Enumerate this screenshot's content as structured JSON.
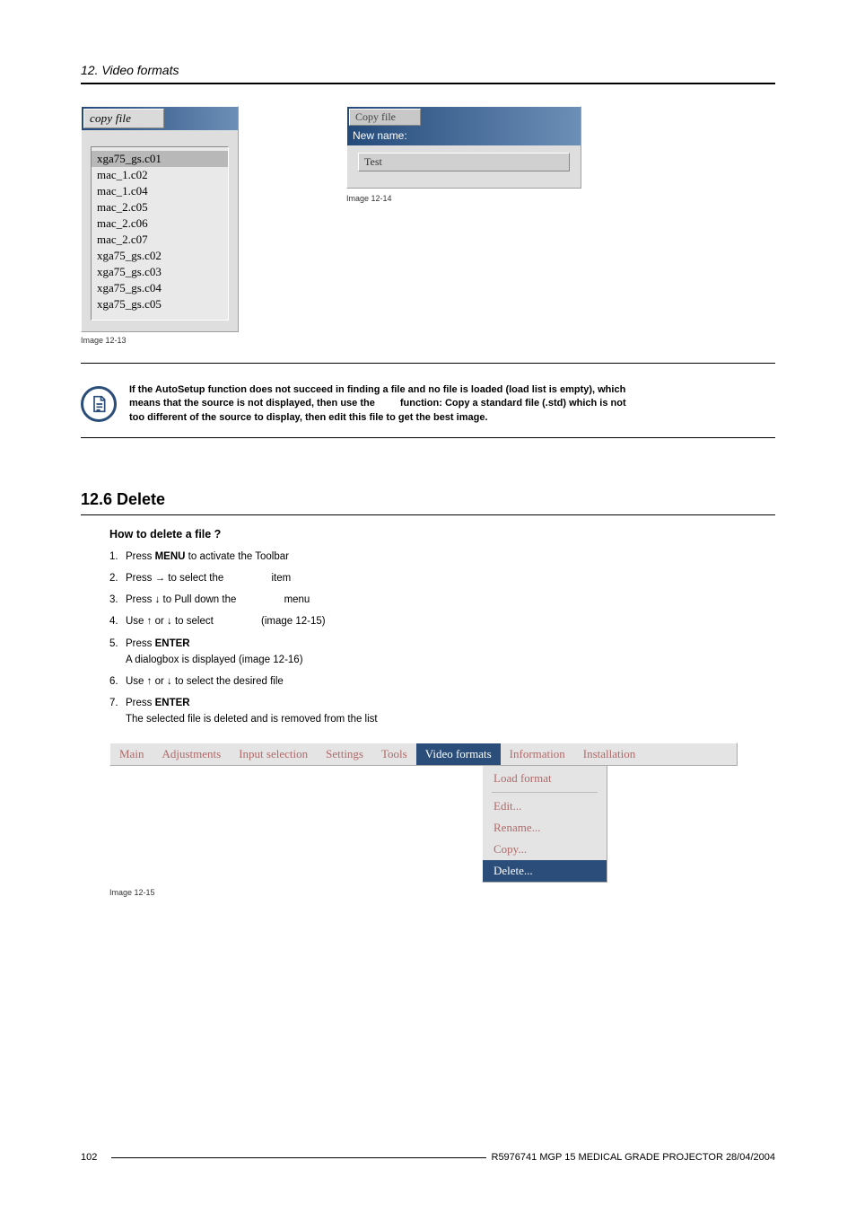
{
  "header": {
    "title": "12. Video formats"
  },
  "copy_dialog": {
    "title": "copy file",
    "items": [
      "xga75_gs.c01",
      "mac_1.c02",
      "mac_1.c04",
      "mac_2.c05",
      "mac_2.c06",
      "mac_2.c07",
      "xga75_gs.c02",
      "xga75_gs.c03",
      "xga75_gs.c04",
      "xga75_gs.c05"
    ],
    "selected_index": 0,
    "caption": "Image 12-13"
  },
  "newname_dialog": {
    "title": "Copy file",
    "sublabel": "New name:",
    "value": "Test",
    "caption": "Image 12-14"
  },
  "note": {
    "line_a": "If the AutoSetup function does not succeed in finding a file and no file is loaded (load list is empty), which",
    "line_b_pre": "means that the source is not displayed, then use the",
    "line_b_post": "function: Copy a standard file (.std) which is not",
    "line_c": "too different of the source to display, then edit this file to get the best image."
  },
  "section": {
    "heading": "12.6 Delete"
  },
  "howto": {
    "subhead": "How to delete a file ?",
    "steps": [
      {
        "num": "1",
        "pre": "Press ",
        "bold": "MENU",
        "post": " to activate the Toolbar"
      },
      {
        "num": "2",
        "pre": "Press → to select the ",
        "gap": true,
        "post": "item"
      },
      {
        "num": "3",
        "pre": "Press ↓ to Pull down the ",
        "gap": true,
        "post": "menu"
      },
      {
        "num": "4",
        "pre": "Use ↑ or ↓ to select ",
        "gap": true,
        "post": "(image 12-15)"
      },
      {
        "num": "5",
        "pre": "Press ",
        "bold": "ENTER",
        "sub": "A dialogbox is displayed (image 12-16)"
      },
      {
        "num": "6",
        "pre": "Use ↑ or ↓ to select the desired file"
      },
      {
        "num": "7",
        "pre": "Press ",
        "bold": "ENTER",
        "sub": "The selected file is deleted and is removed from the list"
      }
    ]
  },
  "menubar": {
    "items": [
      "Main",
      "Adjustments",
      "Input selection",
      "Settings",
      "Tools",
      "Video formats",
      "Information",
      "Installation"
    ],
    "active_index": 5,
    "dropdown": [
      "Load format",
      "Edit...",
      "Rename...",
      "Copy...",
      "Delete..."
    ],
    "dropdown_selected": 4,
    "caption": "Image 12-15"
  },
  "footer": {
    "page": "102",
    "text": "R5976741   MGP 15 MEDICAL GRADE PROJECTOR  28/04/2004"
  },
  "colors": {
    "titlebar_grad_from": "#244a7a",
    "titlebar_grad_to": "#6c8fb7",
    "note_border": "#2a4d7a",
    "menu_link": "#b06a6a"
  }
}
